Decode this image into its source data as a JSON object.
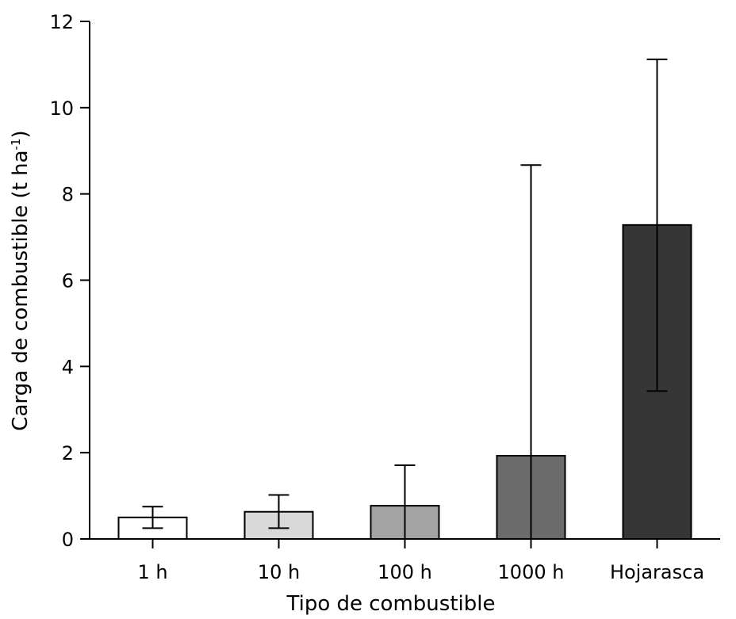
{
  "chart_data": {
    "type": "bar",
    "title": "",
    "xlabel": "Tipo de combustible",
    "ylabel_main": "Carga de combustible (t ha",
    "ylabel_sup": "-1",
    "ylabel_close": ")",
    "categories": [
      "1 h",
      "10 h",
      "100 h",
      "1000 h",
      "Hojarasca"
    ],
    "values": [
      0.5,
      0.63,
      0.77,
      1.93,
      7.28
    ],
    "error_low": [
      0.25,
      0.25,
      0.0,
      0.0,
      3.43
    ],
    "error_high": [
      0.75,
      1.02,
      1.71,
      8.67,
      11.12
    ],
    "bar_colors": [
      "#ffffff",
      "#d9d9d9",
      "#a3a3a3",
      "#6b6b6b",
      "#363636"
    ],
    "ylim": [
      0,
      12
    ],
    "yticks": [
      0,
      2,
      4,
      6,
      8,
      10,
      12
    ],
    "grid": false
  }
}
